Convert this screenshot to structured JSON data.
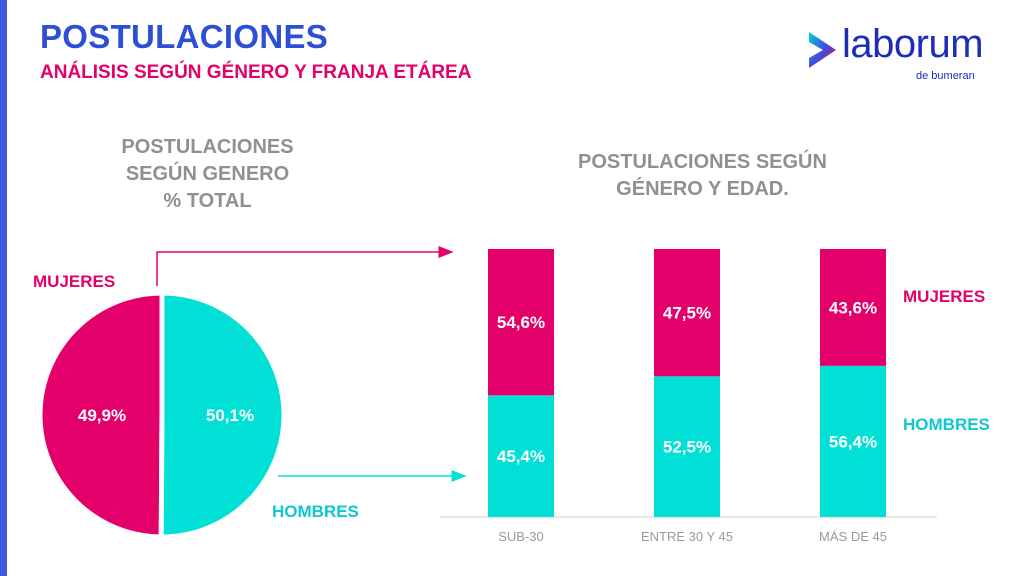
{
  "header": {
    "title": "POSTULACIONES",
    "subtitle": "ANÁLISIS SEGÚN GÉNERO Y FRANJA ETÁREA"
  },
  "logo": {
    "name": "laborum",
    "sub": "de bumeran"
  },
  "left_heading": [
    "POSTULACIONES",
    "SEGÚN GENERO",
    "% TOTAL"
  ],
  "right_heading": [
    "POSTULACIONES SEGÚN",
    "GÉNERO Y EDAD."
  ],
  "colors": {
    "women": "#e4006b",
    "men": "#00e0d6",
    "title": "#2d4fd6",
    "heading": "#909090"
  },
  "chart_data": [
    {
      "type": "pie",
      "slices": [
        {
          "name": "MUJERES",
          "value": 49.9,
          "label": "49,9%"
        },
        {
          "name": "HOMBRES",
          "value": 50.1,
          "label": "50,1%"
        }
      ]
    },
    {
      "type": "bar",
      "stacked": true,
      "categories": [
        "SUB-30",
        "ENTRE 30 Y 45",
        "MÁS DE 45"
      ],
      "series": [
        {
          "name": "HOMBRES",
          "values": [
            45.4,
            52.5,
            56.4
          ],
          "labels": [
            "45,4%",
            "52,5%",
            "56,4%"
          ]
        },
        {
          "name": "MUJERES",
          "values": [
            54.6,
            47.5,
            43.6
          ],
          "labels": [
            "54,6%",
            "47,5%",
            "43,6%"
          ]
        }
      ],
      "ylim": [
        0,
        100
      ],
      "legend": "right"
    }
  ]
}
